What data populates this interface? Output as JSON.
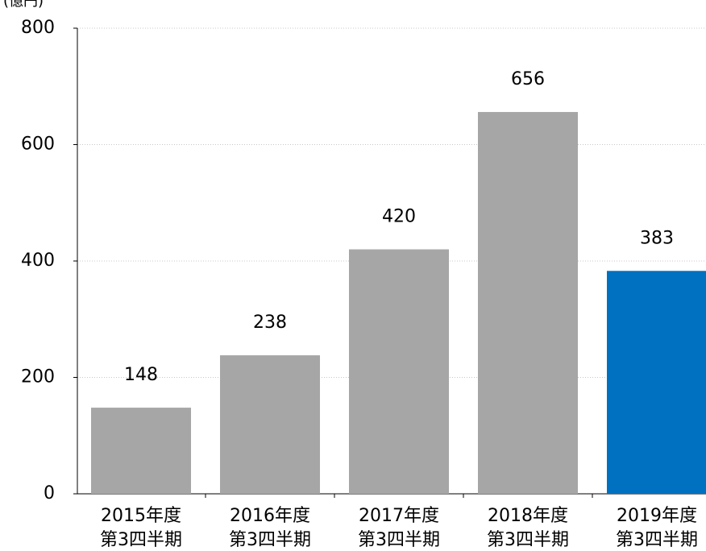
{
  "chart_data": {
    "type": "bar",
    "y_label": "(億円)",
    "categories": [
      [
        "2015年度",
        "第3四半期"
      ],
      [
        "2016年度",
        "第3四半期"
      ],
      [
        "2017年度",
        "第3四半期"
      ],
      [
        "2018年度",
        "第3四半期"
      ],
      [
        "2019年度",
        "第3四半期"
      ]
    ],
    "values": [
      148,
      238,
      420,
      656,
      383
    ],
    "colors": [
      "#a6a6a6",
      "#a6a6a6",
      "#a6a6a6",
      "#a6a6a6",
      "#0070c0"
    ],
    "ylim": [
      0,
      800
    ],
    "yticks": [
      0,
      200,
      400,
      600,
      800
    ],
    "grid": true
  }
}
